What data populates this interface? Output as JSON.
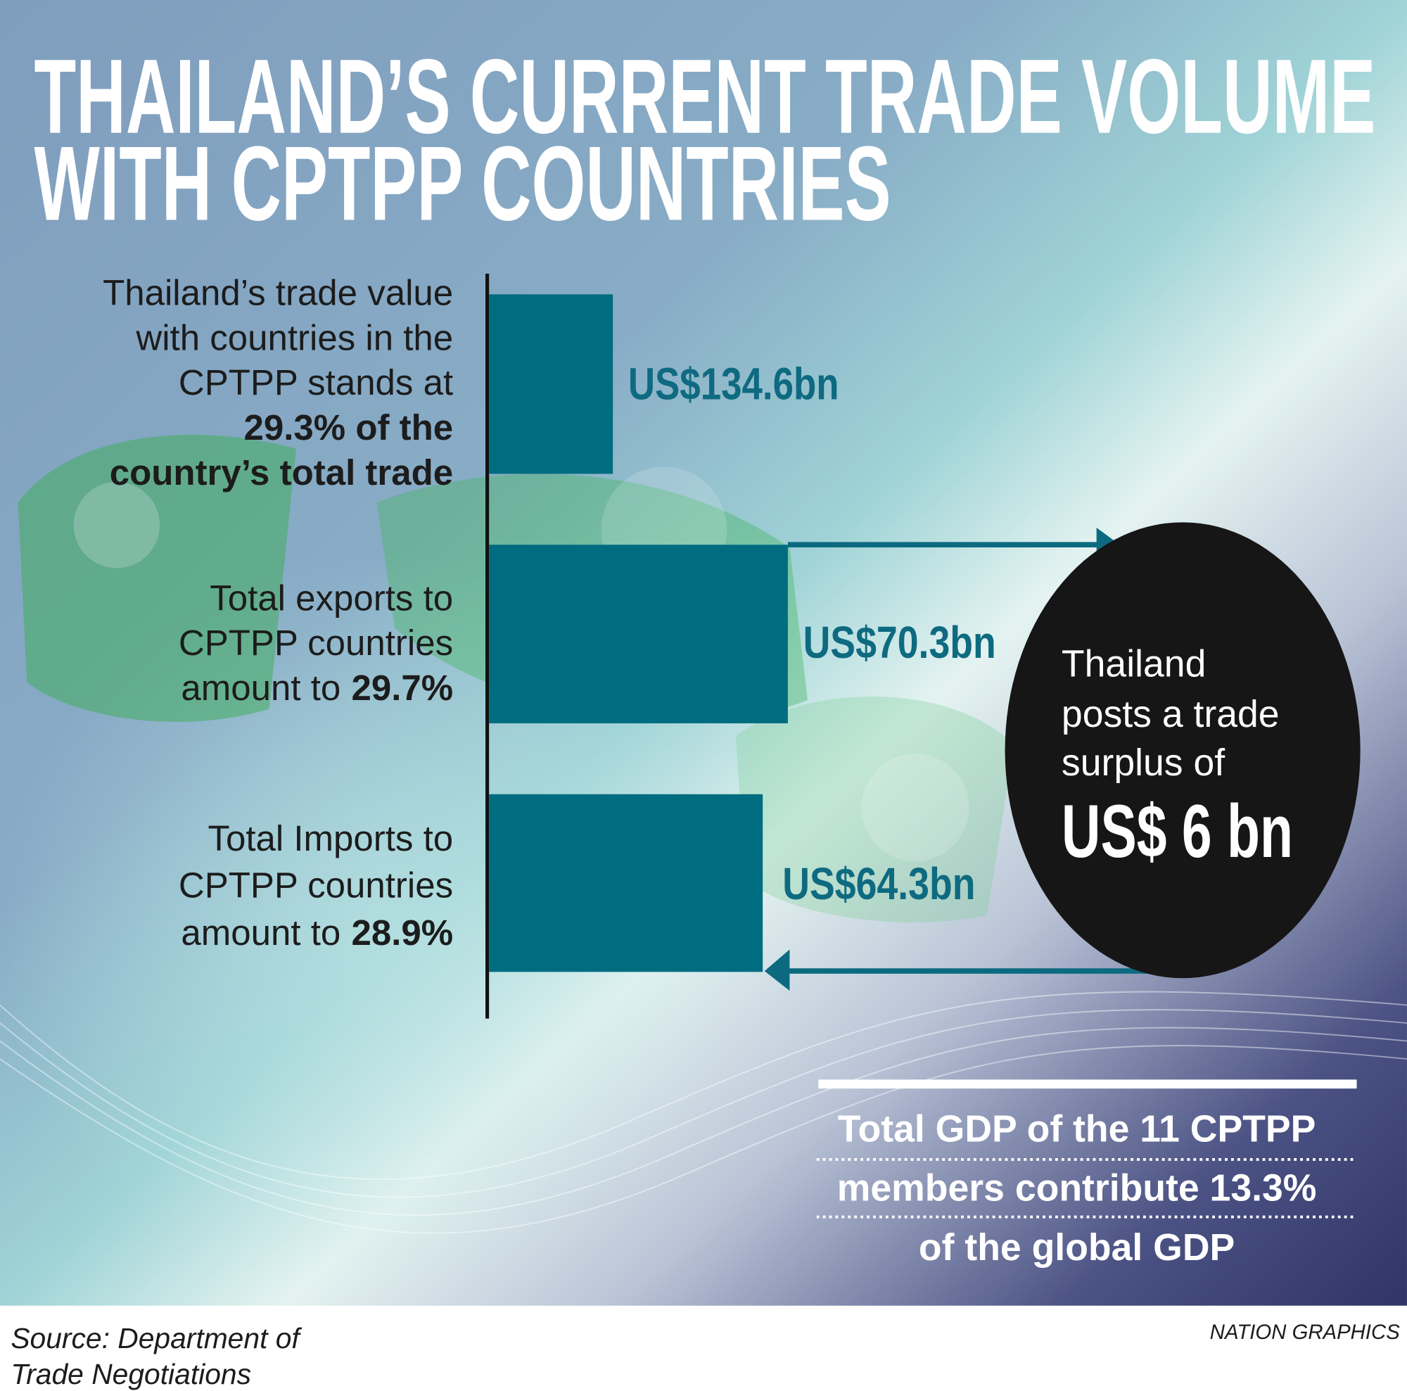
{
  "title": {
    "lines": [
      "THAILAND’S CURRENT TRADE VOLUME",
      "WITH CPTPP COUNTRIES"
    ]
  },
  "items": [
    {
      "description": [
        {
          "text": "Thailand’s trade value"
        },
        {
          "text": "with countries in the"
        },
        {
          "text": "CPTPP stands at"
        },
        {
          "emphasis": "29.3% of the"
        },
        {
          "emphasis": "country’s total trade"
        }
      ],
      "value": "US$134.6bn"
    },
    {
      "description": [
        {
          "text": "Total exports to"
        },
        {
          "text": "CPTPP countries"
        },
        {
          "text": "amount to",
          "emphasis": "29.7%"
        }
      ],
      "value": "US$70.3bn"
    },
    {
      "description": [
        {
          "text": "Total Imports to"
        },
        {
          "text": "CPTPP countries"
        },
        {
          "text": "amount to",
          "emphasis": "28.9%"
        }
      ],
      "value": "US$64.3bn"
    }
  ],
  "callout": {
    "lines": [
      "Thailand",
      "posts a trade",
      "surplus of"
    ],
    "highlight": "US$ 6 bn"
  },
  "footnote": {
    "lines": [
      "Total GDP of the 11 CPTPP",
      "members contribute 13.3%",
      "of the global GDP"
    ]
  },
  "source": {
    "lines": [
      "Source: Department of",
      "Trade Negotiations"
    ]
  },
  "credit": "NATION GRAPHICS"
}
